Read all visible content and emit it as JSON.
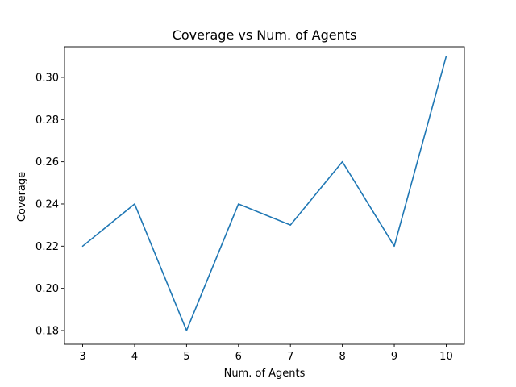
{
  "chart_data": {
    "type": "line",
    "title": "Coverage vs Num. of Agents",
    "xlabel": "Num. of Agents",
    "ylabel": "Coverage",
    "x": [
      3,
      4,
      5,
      6,
      7,
      8,
      9,
      10
    ],
    "series": [
      {
        "values": [
          0.22,
          0.24,
          0.18,
          0.24,
          0.23,
          0.26,
          0.22,
          0.31
        ],
        "color": "#1f77b4"
      }
    ],
    "xlim": [
      2.65,
      10.35
    ],
    "ylim": [
      0.1735,
      0.3145
    ],
    "xticks": [
      "3",
      "4",
      "5",
      "6",
      "7",
      "8",
      "9",
      "10"
    ],
    "yticks": [
      "0.18",
      "0.20",
      "0.22",
      "0.24",
      "0.26",
      "0.28",
      "0.30"
    ],
    "grid": false
  }
}
